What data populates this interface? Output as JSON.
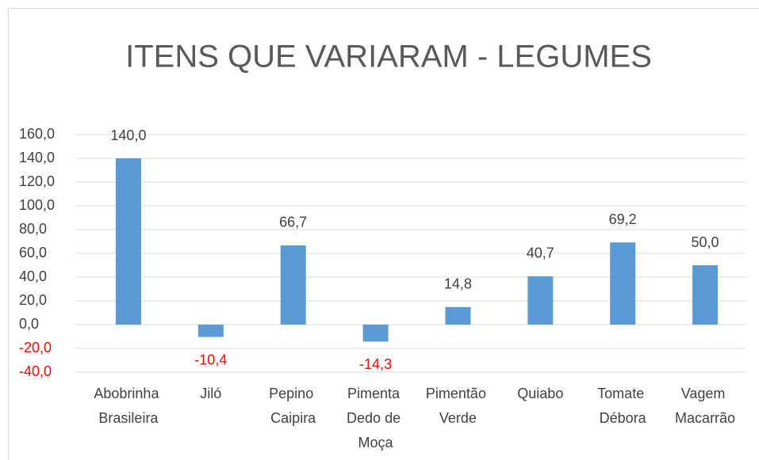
{
  "chart_data": {
    "type": "bar",
    "title": "ITENS QUE VARIARAM - LEGUMES",
    "categories": [
      "Abobrinha Brasileira",
      "Jiló",
      "Pepino Caipira",
      "Pimenta Dedo de Moça",
      "Pimentão Verde",
      "Quiabo",
      "Tomate Débora",
      "Vagem Macarrão"
    ],
    "values": [
      140.0,
      -10.4,
      66.7,
      -14.3,
      14.8,
      40.7,
      69.2,
      50.0
    ],
    "value_labels": [
      "140,0",
      "-10,4",
      "66,7",
      "-14,3",
      "14,8",
      "40,7",
      "69,2",
      "50,0"
    ],
    "color": "#5b9bd5",
    "negative_label_color": "#ff0000",
    "ylim": [
      -40,
      160
    ],
    "yticks": [
      {
        "value": -40,
        "label": "-40,0"
      },
      {
        "value": -20,
        "label": "-20,0"
      },
      {
        "value": 0,
        "label": "0,0"
      },
      {
        "value": 20,
        "label": "20,0"
      },
      {
        "value": 40,
        "label": "40,0"
      },
      {
        "value": 60,
        "label": "60,0"
      },
      {
        "value": 80,
        "label": "80,0"
      },
      {
        "value": 100,
        "label": "100,0"
      },
      {
        "value": 120,
        "label": "120,0"
      },
      {
        "value": 140,
        "label": "140,0"
      },
      {
        "value": 160,
        "label": "160,0"
      }
    ],
    "grid": true
  }
}
